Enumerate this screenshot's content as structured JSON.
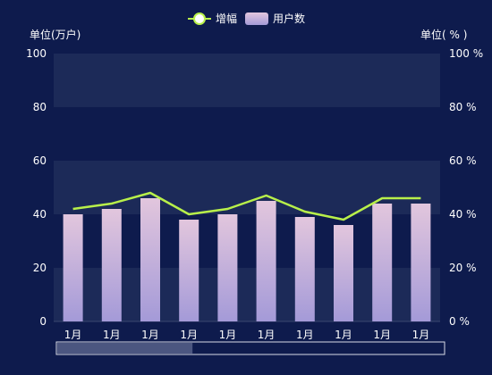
{
  "chart_data": {
    "type": "bar",
    "categories": [
      "1月",
      "1月",
      "1月",
      "1月",
      "1月",
      "1月",
      "1月",
      "1月",
      "1月",
      "1月"
    ],
    "series": [
      {
        "name": "用户数",
        "type": "bar",
        "axis": "left",
        "values": [
          40,
          42,
          46,
          38,
          40,
          45,
          39,
          36,
          44,
          44
        ]
      },
      {
        "name": "增幅",
        "type": "line",
        "axis": "right",
        "values": [
          42,
          44,
          48,
          40,
          42,
          47,
          41,
          38,
          46,
          46
        ]
      }
    ],
    "left_axis": {
      "label": "单位(万户)",
      "ylim": [
        0,
        100
      ],
      "ticks": [
        "0",
        "20",
        "40",
        "60",
        "80",
        "100"
      ]
    },
    "right_axis": {
      "label": "单位( % )",
      "ylim": [
        0,
        100
      ],
      "ticks": [
        "0 %",
        "20 %",
        "40 %",
        "60 %",
        "80 %",
        "100 %"
      ]
    },
    "legend": {
      "position": "top-center",
      "items": [
        "增幅",
        "用户数"
      ]
    },
    "bands": "alternating",
    "data_zoom": {
      "start_fraction": 0,
      "end_fraction": 0.35
    }
  },
  "colors": {
    "background": "#0e1b4d",
    "band": "#1c2a58",
    "line": "#b8f04a",
    "bar_top": "#e2c6dd",
    "bar_bottom": "#a49ad8",
    "text": "#ffffff"
  }
}
